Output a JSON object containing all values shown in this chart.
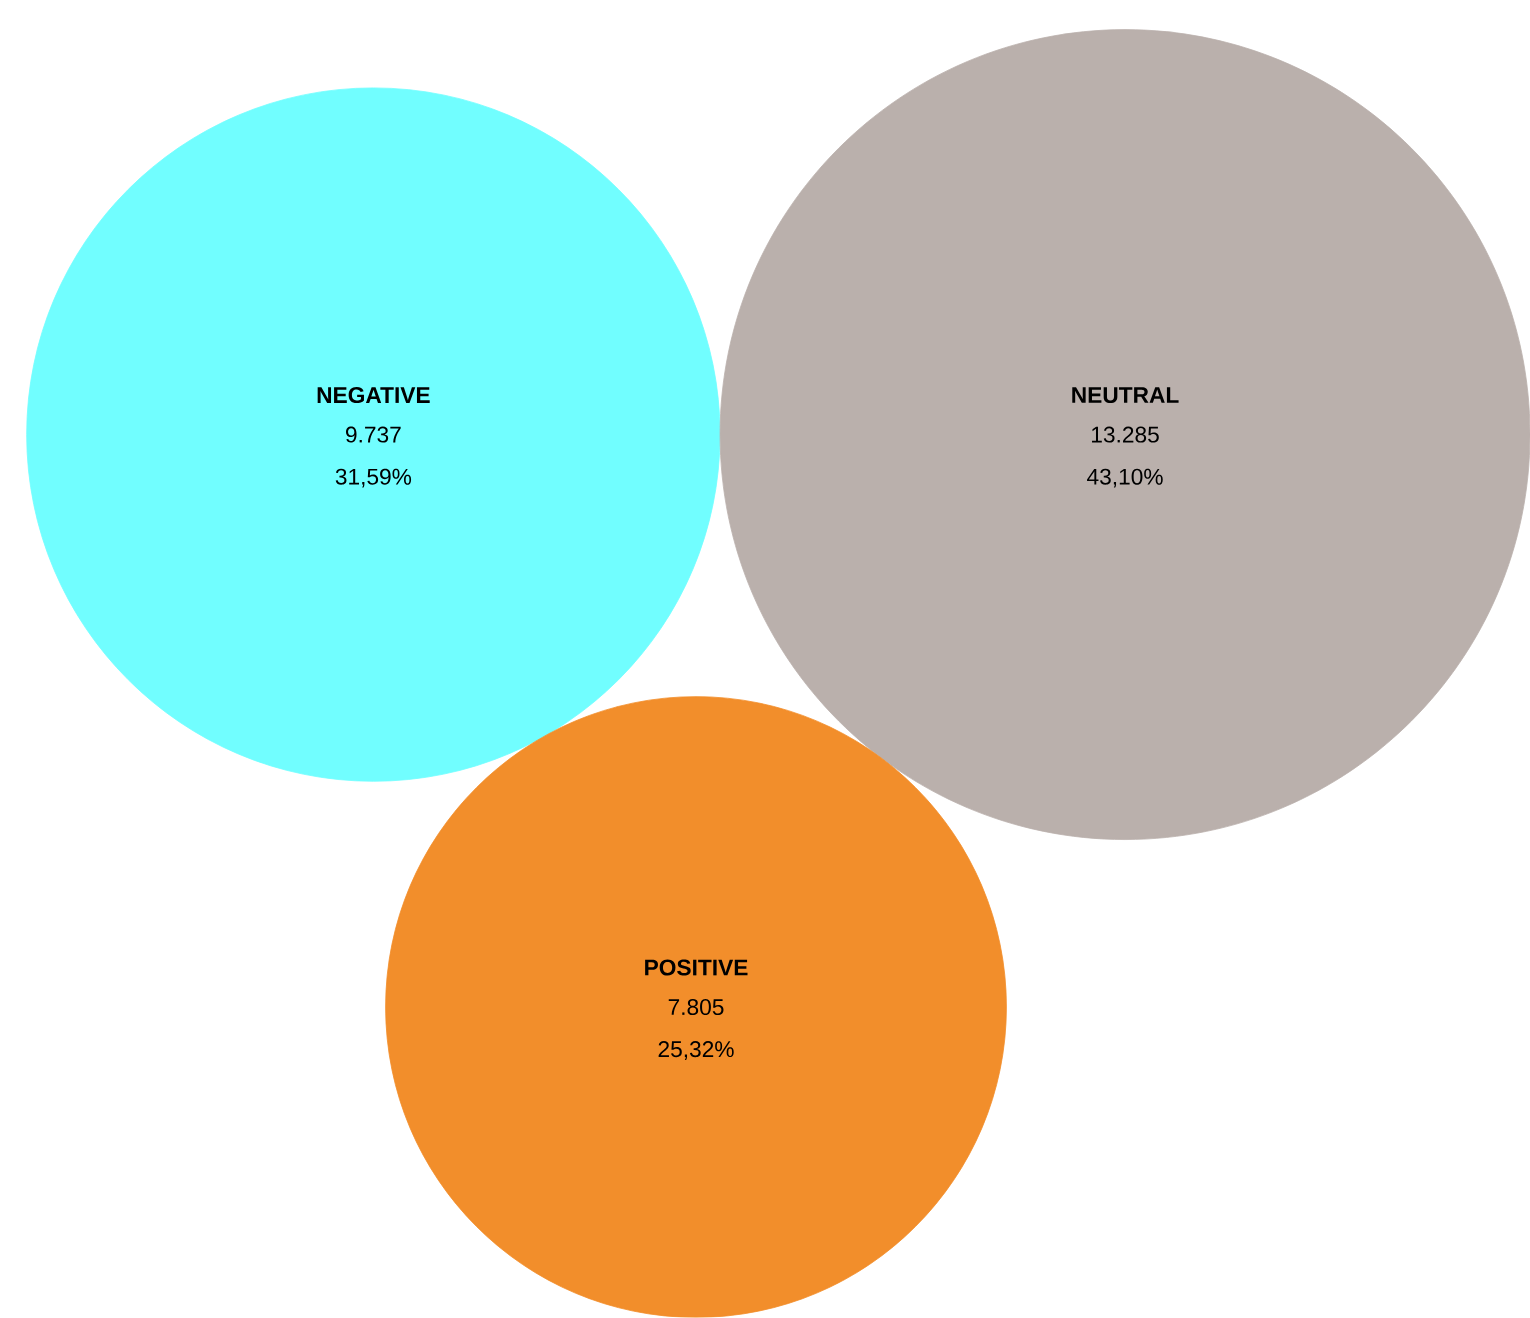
{
  "chart_data": {
    "type": "other",
    "categories": [
      "NEGATIVE",
      "NEUTRAL",
      "POSITIVE"
    ],
    "values": [
      9737,
      13285,
      7805
    ],
    "value_labels": [
      "9.737",
      "13.285",
      "7.805"
    ],
    "annotations": [
      "31,59%",
      "43,10%",
      "25,32%"
    ],
    "colors": [
      "#71feff",
      "#bab0ac",
      "#f28e2b"
    ]
  }
}
